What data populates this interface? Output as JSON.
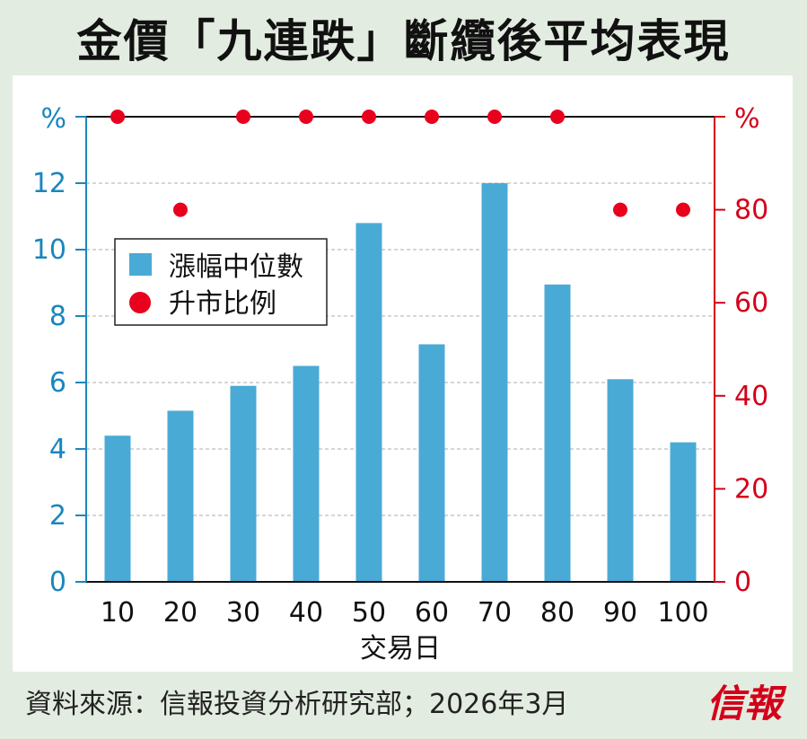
{
  "title": "金價「九連跌」斷纜後平均表現",
  "source": "資料來源：信報投資分析研究部；2026年3月",
  "logo": "信報",
  "colors": {
    "bar": "#4aaad6",
    "dot": "#e8001c",
    "left_axis": "#1a86be",
    "right_axis": "#d4001a"
  },
  "chart_data": {
    "type": "bar",
    "xlabel": "交易日",
    "categories": [
      "10",
      "20",
      "30",
      "40",
      "50",
      "60",
      "70",
      "80",
      "90",
      "100"
    ],
    "series": [
      {
        "name": "漲幅中位數",
        "type": "bar",
        "axis": "left",
        "values": [
          4.4,
          5.15,
          5.9,
          6.5,
          10.8,
          7.15,
          12.0,
          8.95,
          6.1,
          4.2
        ]
      },
      {
        "name": "升市比例",
        "type": "scatter",
        "axis": "right",
        "values": [
          100,
          80,
          100,
          100,
          100,
          100,
          100,
          100,
          80,
          80
        ]
      }
    ],
    "left_axis": {
      "unit": "%",
      "ticks": [
        "0",
        "2",
        "4",
        "6",
        "8",
        "10",
        "12"
      ],
      "ylim": [
        0,
        14
      ]
    },
    "right_axis": {
      "unit": "%",
      "ticks": [
        "0",
        "20",
        "40",
        "60",
        "80"
      ],
      "ylim": [
        0,
        100
      ]
    },
    "legend": {
      "position": "upper-left",
      "entries": [
        "漲幅中位數",
        "升市比例"
      ]
    }
  }
}
